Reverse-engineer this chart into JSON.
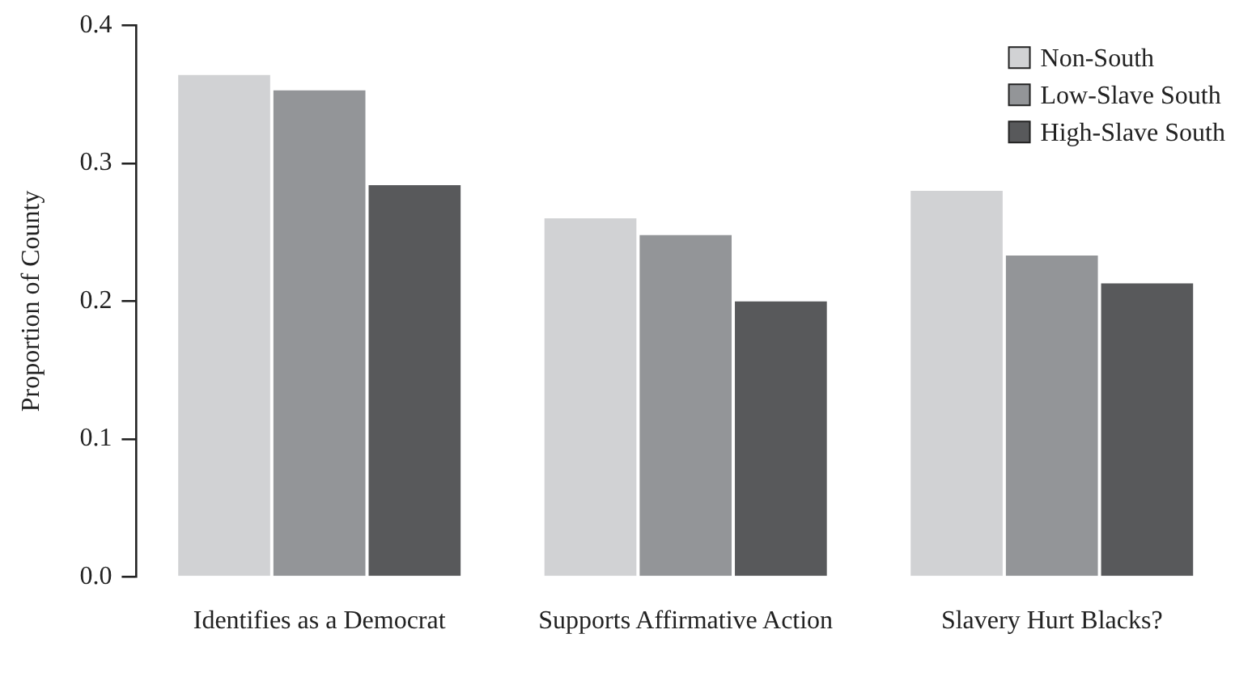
{
  "chart_data": {
    "type": "bar",
    "ylabel": "Proportion of County",
    "categories": [
      "Identifies as a Democrat",
      "Supports Affirmative Action",
      "Slavery Hurt Blacks?"
    ],
    "series": [
      {
        "name": "Non-South",
        "color": "#d1d2d4",
        "values": [
          0.364,
          0.26,
          0.28
        ]
      },
      {
        "name": "Low-Slave South",
        "color": "#939598",
        "values": [
          0.353,
          0.248,
          0.233
        ]
      },
      {
        "name": "High-Slave South",
        "color": "#58595b",
        "values": [
          0.284,
          0.2,
          0.213
        ]
      }
    ],
    "ylim": [
      0,
      0.4
    ],
    "yticks": [
      "0.0",
      0.1,
      0.2,
      0.3,
      0.4
    ],
    "grid": false,
    "legend": "top right"
  }
}
